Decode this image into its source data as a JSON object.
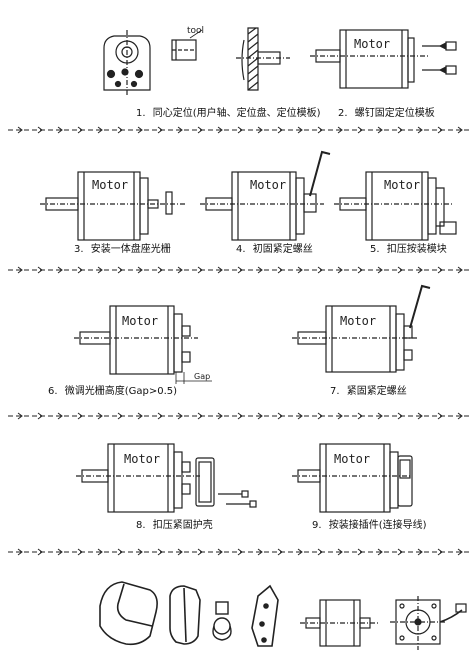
{
  "motor_label": "Motor",
  "tool_label": "tool",
  "gap_label": "Gap",
  "steps": [
    {
      "number": "1.",
      "text": "同心定位(用户轴、定位盘、定位模板)"
    },
    {
      "number": "2.",
      "text": "螺钉固定定位模板"
    },
    {
      "number": "3.",
      "text": "安装一体盘座光栅"
    },
    {
      "number": "4.",
      "text": "初固紧定螺丝"
    },
    {
      "number": "5.",
      "text": "扣压按装模块"
    },
    {
      "number": "6.",
      "text": "微调光栅高度(Gap>0.5)"
    },
    {
      "number": "7.",
      "text": "紧固紧定螺丝"
    },
    {
      "number": "8.",
      "text": "扣压紧固护壳"
    },
    {
      "number": "9.",
      "text": "按装接插件(连接导线)"
    }
  ]
}
